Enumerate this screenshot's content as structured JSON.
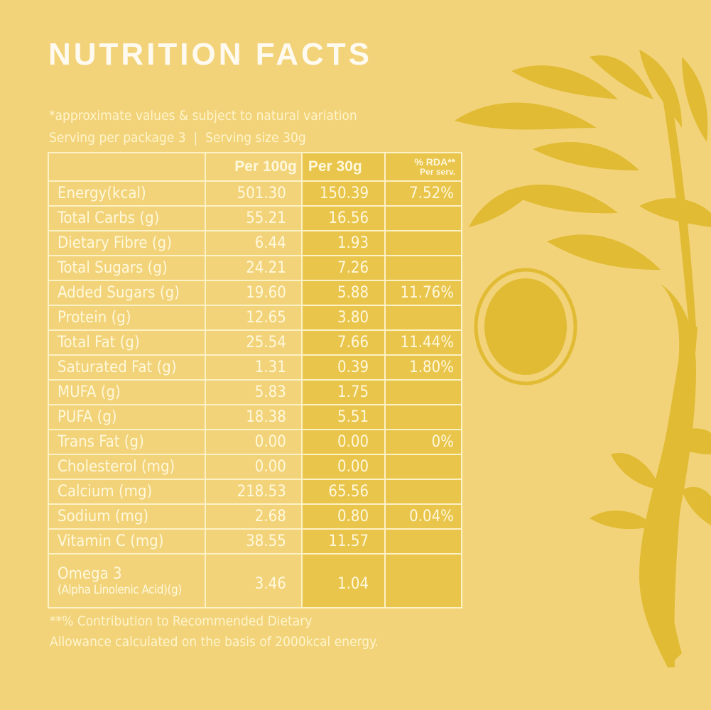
{
  "title": "NUTRITION FACTS",
  "note_line1": "*approximate values & subject to natural variation",
  "note_line2": "Serving per package 3  |  Serving size 30g",
  "table": {
    "headers": [
      "",
      "Per 100g",
      "Per 30g",
      "% RDA**",
      "Per serv."
    ],
    "rows": [
      {
        "name": "Energy(kcal)",
        "per100": "501.30",
        "per30": "150.39",
        "rda": "7.52%"
      },
      {
        "name": "Total Carbs (g)",
        "per100": "55.21",
        "per30": "16.56",
        "rda": ""
      },
      {
        "name": "Dietary Fibre (g)",
        "per100": "6.44",
        "per30": "1.93",
        "rda": ""
      },
      {
        "name": "Total Sugars (g)",
        "per100": "24.21",
        "per30": "7.26",
        "rda": ""
      },
      {
        "name": "Added Sugars (g)",
        "per100": "19.60",
        "per30": "5.88",
        "rda": "11.76%"
      },
      {
        "name": "Protein (g)",
        "per100": "12.65",
        "per30": "3.80",
        "rda": ""
      },
      {
        "name": "Total Fat (g)",
        "per100": "25.54",
        "per30": "7.66",
        "rda": "11.44%"
      },
      {
        "name": "Saturated Fat (g)",
        "per100": "1.31",
        "per30": "0.39",
        "rda": "1.80%"
      },
      {
        "name": "MUFA (g)",
        "per100": "5.83",
        "per30": "1.75",
        "rda": ""
      },
      {
        "name": "PUFA (g)",
        "per100": "18.38",
        "per30": "5.51",
        "rda": ""
      },
      {
        "name": "Trans Fat (g)",
        "per100": "0.00",
        "per30": "0.00",
        "rda": "0%"
      },
      {
        "name": "Cholesterol (mg)",
        "per100": "0.00",
        "per30": "0.00",
        "rda": ""
      },
      {
        "name": "Calcium (mg)",
        "per100": "218.53",
        "per30": "65.56",
        "rda": ""
      },
      {
        "name": "Sodium (mg)",
        "per100": "2.68",
        "per30": "0.80",
        "rda": "0.04%"
      },
      {
        "name": "Vitamin C (mg)",
        "per100": "38.55",
        "per30": "11.57",
        "rda": ""
      }
    ],
    "omega": {
      "name": "Omega 3",
      "subname": "(Alpha Linolenic Acid)(g)",
      "per100": "3.46",
      "per30": "1.04",
      "rda": ""
    }
  },
  "footnote_line1": "**% Contribution to Recommended Dietary",
  "footnote_line2": "Allowance calculated on the basis of 2000kcal energy.",
  "colors": {
    "background": "#f2d379",
    "highlight_column": "#e9c54c",
    "text": "#fff6d2",
    "illustration": "#e0b92c"
  },
  "illustration": "walnut-branch-illustration"
}
